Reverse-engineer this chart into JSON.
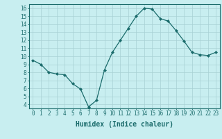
{
  "x": [
    0,
    1,
    2,
    3,
    4,
    5,
    6,
    7,
    8,
    9,
    10,
    11,
    12,
    13,
    14,
    15,
    16,
    17,
    18,
    19,
    20,
    21,
    22,
    23
  ],
  "y": [
    9.5,
    9.0,
    8.0,
    7.8,
    7.7,
    6.6,
    5.9,
    3.7,
    4.5,
    8.3,
    10.5,
    12.0,
    13.5,
    15.0,
    16.0,
    15.9,
    14.7,
    14.4,
    13.2,
    11.9,
    10.5,
    10.2,
    10.1,
    10.5
  ],
  "xlabel": "Humidex (Indice chaleur)",
  "ylim": [
    3.5,
    16.5
  ],
  "xlim": [
    -0.5,
    23.5
  ],
  "yticks": [
    4,
    5,
    6,
    7,
    8,
    9,
    10,
    11,
    12,
    13,
    14,
    15,
    16
  ],
  "xticks": [
    0,
    1,
    2,
    3,
    4,
    5,
    6,
    7,
    8,
    9,
    10,
    11,
    12,
    13,
    14,
    15,
    16,
    17,
    18,
    19,
    20,
    21,
    22,
    23
  ],
  "line_color": "#1a6b6b",
  "marker": "D",
  "marker_size": 2.0,
  "bg_color": "#c8eef0",
  "grid_color": "#a8d0d4",
  "axes_color": "#1a6b6b",
  "tick_label_fontsize": 5.5,
  "xlabel_fontsize": 7.0
}
